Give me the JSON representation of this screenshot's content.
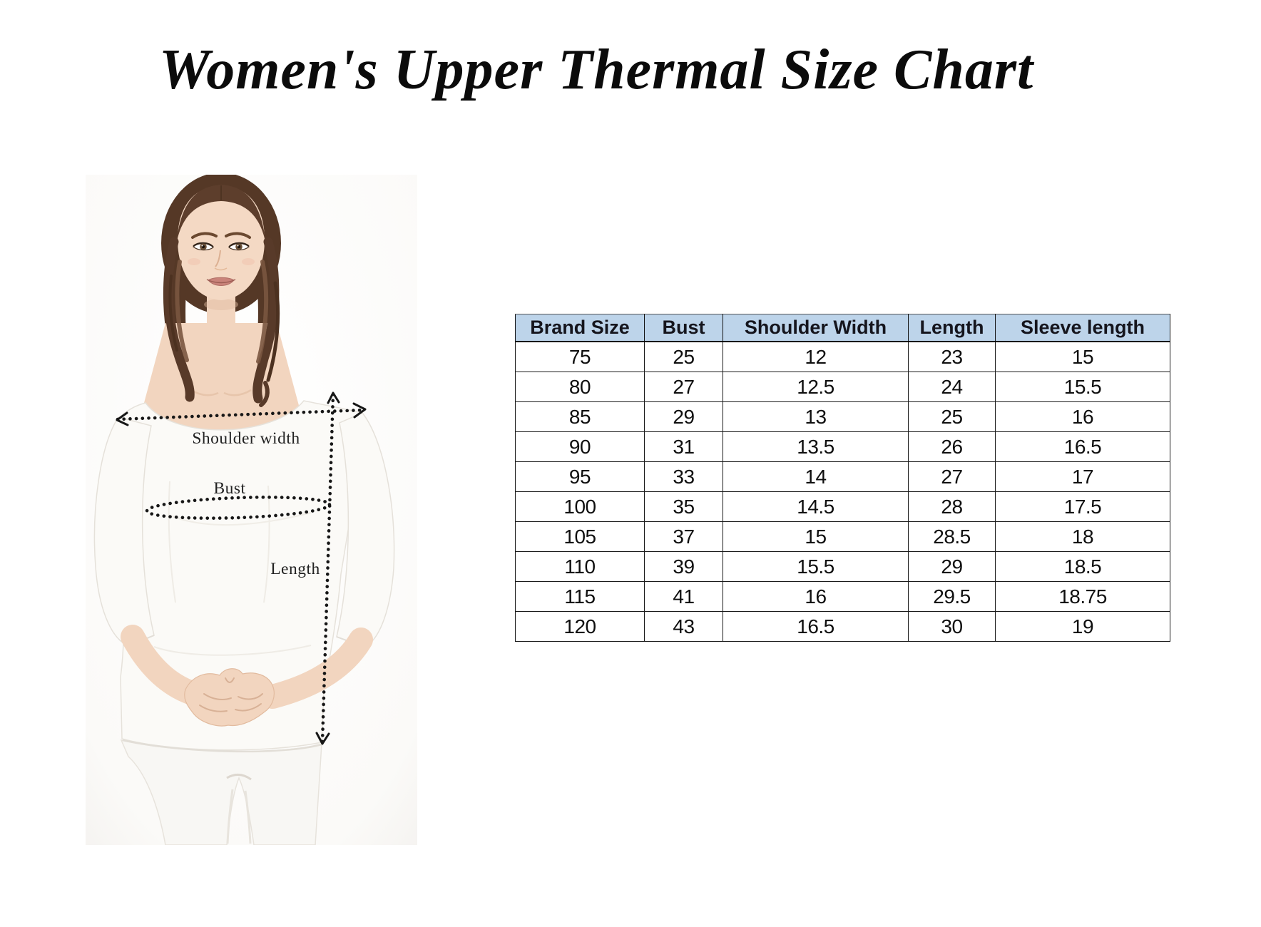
{
  "title": "Women's Upper Thermal Size Chart",
  "figure": {
    "annotations": {
      "shoulder_width": "Shoulder width",
      "bust": "Bust",
      "length": "Length"
    }
  },
  "size_table": {
    "columns": [
      "Brand Size",
      "Bust",
      "Shoulder Width",
      "Length",
      "Sleeve length"
    ],
    "rows": [
      [
        "75",
        "25",
        "12",
        "23",
        "15"
      ],
      [
        "80",
        "27",
        "12.5",
        "24",
        "15.5"
      ],
      [
        "85",
        "29",
        "13",
        "25",
        "16"
      ],
      [
        "90",
        "31",
        "13.5",
        "26",
        "16.5"
      ],
      [
        "95",
        "33",
        "14",
        "27",
        "17"
      ],
      [
        "100",
        "35",
        "14.5",
        "28",
        "17.5"
      ],
      [
        "105",
        "37",
        "15",
        "28.5",
        "18"
      ],
      [
        "110",
        "39",
        "15.5",
        "29",
        "18.5"
      ],
      [
        "115",
        "41",
        "16",
        "29.5",
        "18.75"
      ],
      [
        "120",
        "43",
        "16.5",
        "30",
        "19"
      ]
    ]
  },
  "chart_data": {
    "type": "table",
    "title": "Women's Upper Thermal Size Chart",
    "columns": [
      "Brand Size",
      "Bust",
      "Shoulder Width",
      "Length",
      "Sleeve length"
    ],
    "rows": [
      [
        75,
        25,
        12,
        23,
        15
      ],
      [
        80,
        27,
        12.5,
        24,
        15.5
      ],
      [
        85,
        29,
        13,
        25,
        16
      ],
      [
        90,
        31,
        13.5,
        26,
        16.5
      ],
      [
        95,
        33,
        14,
        27,
        17
      ],
      [
        100,
        35,
        14.5,
        28,
        17.5
      ],
      [
        105,
        37,
        15,
        28.5,
        18
      ],
      [
        110,
        39,
        15.5,
        29,
        18.5
      ],
      [
        115,
        41,
        16,
        29.5,
        18.75
      ],
      [
        120,
        43,
        16.5,
        30,
        19
      ]
    ],
    "legend_position": "none",
    "grid": true
  },
  "colors": {
    "header_bg": "#bdd4ea",
    "table_border": "#1a1a1a",
    "annotation": "#171717",
    "title_color": "#0b0b0b"
  }
}
